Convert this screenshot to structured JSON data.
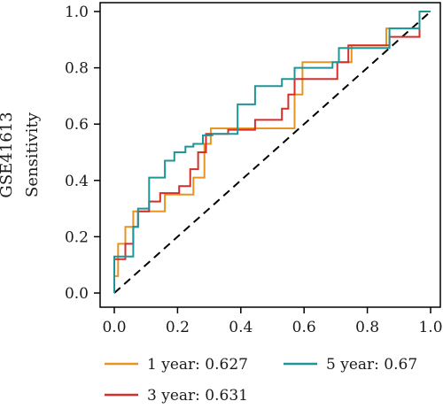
{
  "chart_data": {
    "type": "line",
    "title": "",
    "dataset_label": "GSE41613",
    "xlabel": "",
    "ylabel": "Sensitivity",
    "xlim": [
      0,
      1
    ],
    "ylim": [
      0,
      1
    ],
    "x_ticks": [
      "0.0",
      "0.2",
      "0.4",
      "0.6",
      "0.8",
      "1.0"
    ],
    "y_ticks": [
      "0.0",
      "0.2",
      "0.4",
      "0.6",
      "0.8",
      "1.0"
    ],
    "grid": false,
    "legend_position": "bottom",
    "reference_line": {
      "style": "dashed",
      "color": "#000000",
      "x": [
        0,
        1
      ],
      "y": [
        0,
        1
      ]
    },
    "series": [
      {
        "name": "1 year: 0.627",
        "color": "#E69522",
        "x": [
          0,
          0,
          0.012,
          0.012,
          0.035,
          0.035,
          0.06,
          0.06,
          0.075,
          0.075,
          0.16,
          0.16,
          0.25,
          0.25,
          0.285,
          0.285,
          0.305,
          0.305,
          0.57,
          0.57,
          0.595,
          0.595,
          0.75,
          0.75,
          0.86,
          0.86,
          0.965,
          0.965,
          1.0
        ],
        "y": [
          0,
          0.06,
          0.06,
          0.175,
          0.175,
          0.235,
          0.235,
          0.29,
          0.29,
          0.29,
          0.29,
          0.35,
          0.35,
          0.41,
          0.41,
          0.53,
          0.53,
          0.585,
          0.585,
          0.705,
          0.705,
          0.82,
          0.82,
          0.88,
          0.88,
          0.94,
          0.94,
          1.0,
          1.0
        ]
      },
      {
        "name": "3 year: 0.631",
        "color": "#D42F2A",
        "x": [
          0,
          0,
          0.035,
          0.035,
          0.06,
          0.06,
          0.075,
          0.075,
          0.11,
          0.11,
          0.145,
          0.145,
          0.205,
          0.205,
          0.24,
          0.24,
          0.265,
          0.265,
          0.29,
          0.29,
          0.36,
          0.36,
          0.445,
          0.445,
          0.53,
          0.53,
          0.55,
          0.55,
          0.57,
          0.57,
          0.62,
          0.62,
          0.705,
          0.705,
          0.74,
          0.74,
          0.87,
          0.87,
          0.965,
          0.965,
          1.0
        ],
        "y": [
          0,
          0.12,
          0.12,
          0.175,
          0.175,
          0.235,
          0.235,
          0.29,
          0.29,
          0.325,
          0.325,
          0.355,
          0.355,
          0.38,
          0.38,
          0.44,
          0.44,
          0.5,
          0.5,
          0.565,
          0.565,
          0.58,
          0.58,
          0.615,
          0.615,
          0.655,
          0.655,
          0.705,
          0.705,
          0.76,
          0.76,
          0.76,
          0.76,
          0.82,
          0.82,
          0.88,
          0.88,
          0.91,
          0.91,
          1.0,
          1.0
        ]
      },
      {
        "name": "5 year: 0.67",
        "color": "#1E9597",
        "x": [
          0,
          0,
          0.06,
          0.06,
          0.075,
          0.075,
          0.11,
          0.11,
          0.16,
          0.16,
          0.19,
          0.19,
          0.225,
          0.225,
          0.25,
          0.25,
          0.28,
          0.28,
          0.31,
          0.31,
          0.36,
          0.36,
          0.39,
          0.39,
          0.445,
          0.445,
          0.53,
          0.53,
          0.57,
          0.57,
          0.69,
          0.69,
          0.71,
          0.71,
          0.87,
          0.87,
          0.965,
          0.965,
          1.0
        ],
        "y": [
          0,
          0.13,
          0.13,
          0.235,
          0.235,
          0.3,
          0.3,
          0.41,
          0.41,
          0.47,
          0.47,
          0.5,
          0.5,
          0.52,
          0.52,
          0.53,
          0.53,
          0.56,
          0.56,
          0.565,
          0.565,
          0.565,
          0.565,
          0.67,
          0.67,
          0.735,
          0.735,
          0.76,
          0.76,
          0.8,
          0.8,
          0.82,
          0.82,
          0.87,
          0.87,
          0.94,
          0.94,
          1.0,
          1.0
        ]
      }
    ]
  }
}
